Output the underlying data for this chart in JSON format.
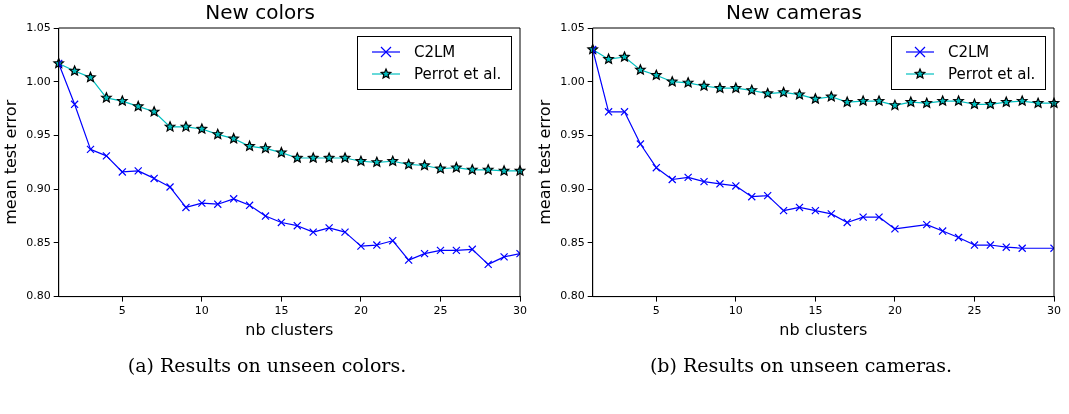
{
  "chart_data": [
    {
      "type": "line",
      "title": "New colors",
      "xlabel": "nb clusters",
      "ylabel": "mean test error",
      "x": [
        1,
        2,
        3,
        4,
        5,
        6,
        7,
        8,
        9,
        10,
        11,
        12,
        13,
        14,
        15,
        16,
        17,
        18,
        19,
        20,
        21,
        22,
        23,
        24,
        25,
        26,
        27,
        28,
        29,
        30
      ],
      "xlim": [
        1,
        30
      ],
      "xticks": [
        5,
        10,
        15,
        20,
        25,
        30
      ],
      "ylim": [
        0.8,
        1.05
      ],
      "yticks": [
        {
          "value": 0.8,
          "label": "0.80"
        },
        0.85,
        {
          "value": 0.9,
          "label": "0.90"
        },
        0.95,
        {
          "value": 1.0,
          "label": "1.00"
        },
        1.05
      ],
      "grid": false,
      "legend": "top right",
      "line_style": "solid",
      "series": [
        {
          "name": "C2LM",
          "color": "#0000ff",
          "marker": "cross",
          "values": [
            1.017,
            0.979,
            0.937,
            0.931,
            0.916,
            0.917,
            0.91,
            0.902,
            0.883,
            0.887,
            0.886,
            0.891,
            0.885,
            0.875,
            0.869,
            0.866,
            0.86,
            0.864,
            0.86,
            0.847,
            0.848,
            0.852,
            0.834,
            0.84,
            0.843,
            0.843,
            0.844,
            0.83,
            0.837,
            0.84
          ]
        },
        {
          "name": "Perrot et al.",
          "color": "#00bfbf",
          "marker": "star",
          "values": [
            1.017,
            1.01,
            1.004,
            0.985,
            0.982,
            0.977,
            0.972,
            0.958,
            0.958,
            0.956,
            0.951,
            0.947,
            0.94,
            0.938,
            0.934,
            0.929,
            0.929,
            0.929,
            0.929,
            0.926,
            0.925,
            0.926,
            0.923,
            0.922,
            0.919,
            0.92,
            0.918,
            0.918,
            0.917,
            0.917
          ]
        }
      ],
      "annotations": [
        "(a) Results on unseen colors."
      ]
    },
    {
      "type": "line",
      "title": "New cameras",
      "xlabel": "nb clusters",
      "ylabel": "mean test error",
      "xlim": [
        1,
        30
      ],
      "xticks": [
        5,
        10,
        15,
        20,
        25,
        30
      ],
      "ylim": [
        0.8,
        1.05
      ],
      "yticks": [
        {
          "value": 0.8,
          "label": "0.80"
        },
        0.85,
        {
          "value": 0.9,
          "label": "0.90"
        },
        0.95,
        {
          "value": 1.0,
          "label": "1.00"
        },
        1.05
      ],
      "grid": false,
      "legend": "top right",
      "line_style": "solid",
      "series": [
        {
          "name": "C2LM",
          "color": "#0000ff",
          "marker": "cross",
          "x": [
            1,
            2,
            3,
            4,
            5,
            6,
            7,
            8,
            9,
            10,
            11,
            12,
            13,
            14,
            15,
            16,
            17,
            18,
            19,
            20,
            22,
            23,
            24,
            25,
            26,
            27,
            28,
            30
          ],
          "values": [
            1.03,
            0.972,
            0.972,
            0.942,
            0.92,
            0.909,
            0.911,
            0.907,
            0.905,
            0.903,
            0.893,
            0.894,
            0.88,
            0.883,
            0.88,
            0.877,
            0.869,
            0.874,
            0.874,
            0.863,
            0.867,
            0.861,
            0.855,
            0.848,
            0.848,
            0.846,
            0.845,
            0.845
          ]
        },
        {
          "name": "Perrot et al.",
          "color": "#00bfbf",
          "marker": "star",
          "x": [
            1,
            2,
            3,
            4,
            5,
            6,
            7,
            8,
            9,
            10,
            11,
            12,
            13,
            14,
            15,
            16,
            17,
            18,
            19,
            20,
            21,
            22,
            23,
            24,
            25,
            26,
            27,
            28,
            29,
            30
          ],
          "values": [
            1.03,
            1.021,
            1.023,
            1.011,
            1.006,
            1.0,
            0.999,
            0.996,
            0.994,
            0.994,
            0.992,
            0.989,
            0.99,
            0.988,
            0.984,
            0.986,
            0.981,
            0.982,
            0.982,
            0.978,
            0.981,
            0.98,
            0.982,
            0.982,
            0.979,
            0.979,
            0.981,
            0.982,
            0.98,
            0.98
          ]
        }
      ],
      "annotations": [
        "(b) Results on unseen cameras."
      ]
    }
  ]
}
